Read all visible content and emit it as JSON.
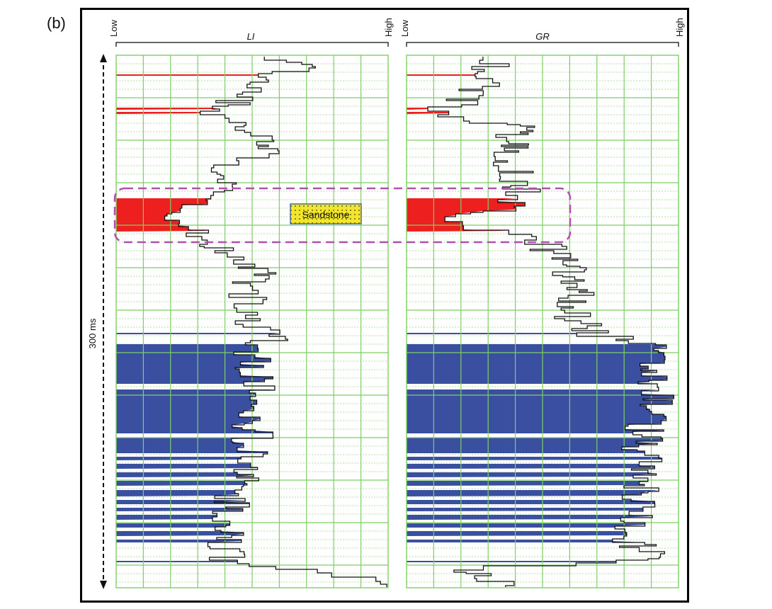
{
  "panel_label": "(b)",
  "scale_label": "300 ms",
  "tracks": [
    {
      "id": "li",
      "title": "LI",
      "low": "Low",
      "high": "High"
    },
    {
      "id": "gr",
      "title": "GR",
      "low": "Low",
      "high": "High"
    }
  ],
  "lithology_label": "Sandstone",
  "colors": {
    "grid_major": "#7ccf63",
    "grid_minor": "#9bd98a",
    "shale_fill": "#3b4fa0",
    "sand_fill": "#ee1f1f",
    "bracket": "#333333",
    "highlight_box": "#b150b1",
    "sandstone_fill": "#f3e62a",
    "sandstone_border": "#4a6a9a"
  }
}
